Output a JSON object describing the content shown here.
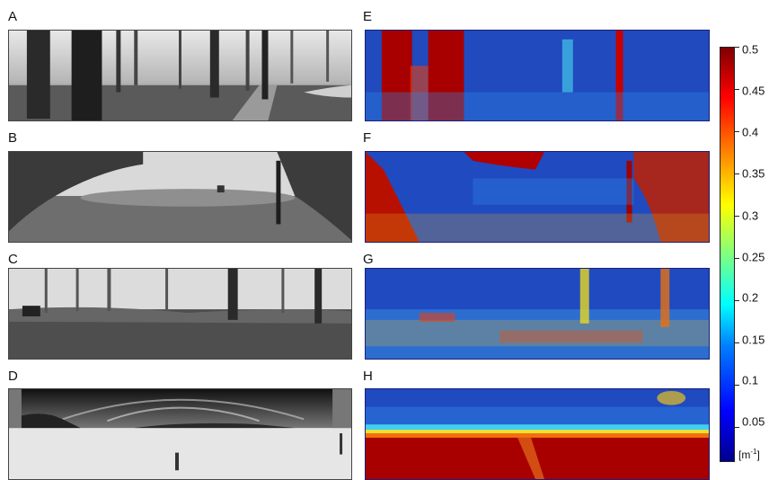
{
  "panels": {
    "left": [
      "A",
      "B",
      "C",
      "D"
    ],
    "right": [
      "E",
      "F",
      "G",
      "H"
    ]
  },
  "colorbar": {
    "ticks": [
      "0.5",
      "0.45",
      "0.4",
      "0.35",
      "0.3",
      "0.25",
      "0.2",
      "0.15",
      "0.1",
      "0.05"
    ],
    "unit_base": "[m",
    "unit_exp": "-1",
    "unit_close": "]"
  }
}
